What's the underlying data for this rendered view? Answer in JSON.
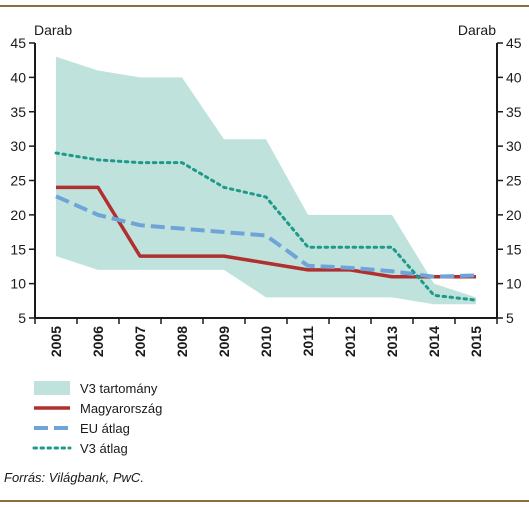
{
  "chart_data": {
    "type": "line",
    "units": {
      "left": "Darab",
      "right": "Darab"
    },
    "x": [
      "2005",
      "2006",
      "2007",
      "2008",
      "2009",
      "2010",
      "2011",
      "2012",
      "2013",
      "2014",
      "2015"
    ],
    "ylim": [
      5,
      45
    ],
    "yticks": [
      "5",
      "10",
      "15",
      "20",
      "25",
      "30",
      "35",
      "40",
      "45"
    ],
    "grid": false,
    "legend_position": "bottom-left",
    "band": {
      "name": "V3 tartomány",
      "color": "#bfe3dc",
      "upper": [
        43,
        41,
        40,
        40,
        31,
        31,
        20,
        20,
        20,
        10,
        8
      ],
      "lower": [
        14,
        12,
        12,
        12,
        12,
        8,
        8,
        8,
        8,
        7,
        7
      ]
    },
    "series": [
      {
        "name": "Magyarország",
        "color": "#b03030",
        "style": "solid",
        "values": [
          24,
          24,
          14,
          14,
          14,
          13,
          12,
          12,
          11,
          11,
          11
        ]
      },
      {
        "name": "EU átlag",
        "color": "#6ea4d8",
        "style": "dashed",
        "values": [
          22.7,
          20,
          18.5,
          18,
          17.5,
          17,
          12.6,
          12.3,
          11.8,
          11,
          11.2
        ]
      },
      {
        "name": "V3 átlag",
        "color": "#1f9a8a",
        "style": "dotted",
        "values": [
          29,
          28,
          27.6,
          27.6,
          24,
          22.6,
          15.3,
          15.3,
          15.3,
          8.3,
          7.6
        ]
      }
    ]
  },
  "source": "Forrás: Világbank, PwC."
}
